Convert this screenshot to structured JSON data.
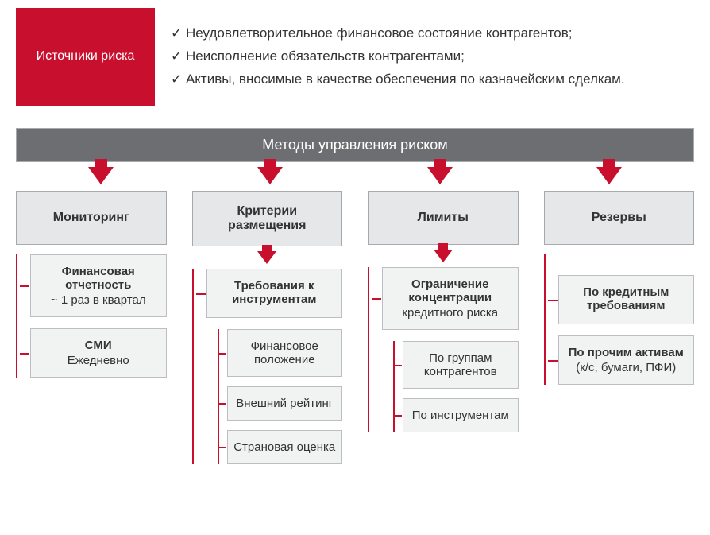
{
  "colors": {
    "accent": "#c8102e",
    "header_bar": "#6d6e71",
    "box_fill": "#f1f2f2",
    "box_header_fill": "#e6e7e8",
    "border": "#a7a9ac",
    "text": "#333333",
    "white": "#ffffff"
  },
  "fonts": {
    "body_size": 17,
    "header_size": 16,
    "box_size": 15,
    "bar_size": 18
  },
  "top": {
    "label": "Источники риска",
    "bullets": [
      "Неудовлетворительное финансовое состояние контрагентов;",
      "Неисполнение обязательств контрагентами;",
      "Активы, вносимые в качестве обеспечения по казначейским сделкам."
    ]
  },
  "methods_bar": "Методы управления риском",
  "columns": [
    {
      "header": "Мониторинг",
      "has_mid_arrow": false,
      "items": [
        {
          "title": "Финансовая отчетность",
          "sub": "~ 1 раз в квартал"
        },
        {
          "title": "СМИ",
          "sub": "Ежедневно"
        }
      ]
    },
    {
      "header": "Критерии размещения",
      "has_mid_arrow": true,
      "items": [
        {
          "title": "Требования к инструментам",
          "subitems": [
            "Финансовое положение",
            "Внешний рейтинг",
            "Страновая оценка"
          ]
        }
      ]
    },
    {
      "header": "Лимиты",
      "has_mid_arrow": true,
      "items": [
        {
          "title": "Ограничение концентрации",
          "sub": "кредитного риска",
          "subitems": [
            "По группам контрагентов",
            "По инструментам"
          ]
        }
      ]
    },
    {
      "header": "Резервы",
      "has_mid_arrow": false,
      "spacer": true,
      "items": [
        {
          "title": "По кредитным требованиям"
        },
        {
          "title": "По прочим активам",
          "sub": "(к/с, бумаги, ПФИ)"
        }
      ]
    }
  ]
}
